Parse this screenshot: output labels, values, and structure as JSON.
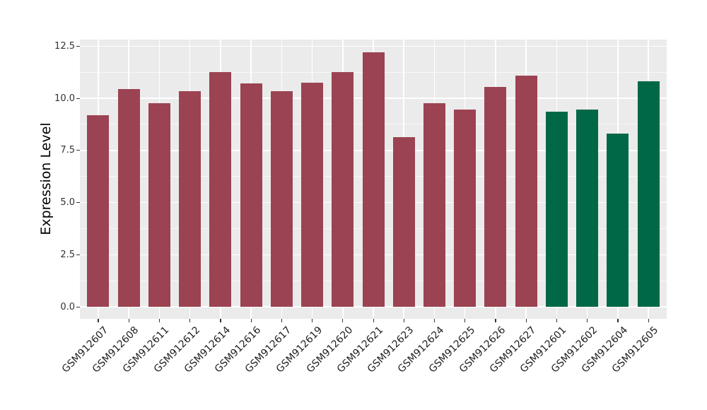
{
  "chart_data": {
    "type": "bar",
    "title": "",
    "xlabel": "",
    "ylabel": "Expression Level",
    "ylim": [
      0,
      12.5
    ],
    "yticks": [
      {
        "label": "0.0",
        "value": 0
      },
      {
        "label": "2.5",
        "value": 2.5
      },
      {
        "label": "5.0",
        "value": 5
      },
      {
        "label": "7.5",
        "value": 7.5
      },
      {
        "label": "10.0",
        "value": 10
      },
      {
        "label": "12.5",
        "value": 12.5
      }
    ],
    "grid": "major and minor horizontal white lines plus vertical white lines at each category, on grey panel",
    "legend_position": "none",
    "categories": [
      "GSM912607",
      "GSM912608",
      "GSM912611",
      "GSM912612",
      "GSM912614",
      "GSM912616",
      "GSM912617",
      "GSM912619",
      "GSM912620",
      "GSM912621",
      "GSM912623",
      "GSM912624",
      "GSM912625",
      "GSM912626",
      "GSM912627",
      "GSM912601",
      "GSM912602",
      "GSM912604",
      "GSM912605"
    ],
    "values": [
      9.2,
      10.45,
      9.75,
      10.35,
      11.25,
      10.7,
      10.35,
      10.75,
      11.25,
      12.2,
      8.15,
      9.75,
      9.45,
      10.55,
      11.1,
      9.35,
      9.45,
      8.3,
      10.8
    ],
    "groups": [
      "maroon",
      "maroon",
      "maroon",
      "maroon",
      "maroon",
      "maroon",
      "maroon",
      "maroon",
      "maroon",
      "maroon",
      "maroon",
      "maroon",
      "maroon",
      "maroon",
      "maroon",
      "green",
      "green",
      "green",
      "green"
    ],
    "palette": {
      "maroon": "#9B4352",
      "green": "#006846"
    }
  },
  "style": {
    "panel_bg": "#EBEBEB",
    "grid_major_color": "#FFFFFF",
    "grid_minor_color": "rgba(255,255,255,0.65)",
    "axis_text_color": "#333333",
    "x_axis_text_color": "#1F1F1F",
    "axis_title_color": "#000000",
    "tick_mark_color": "#333333"
  }
}
